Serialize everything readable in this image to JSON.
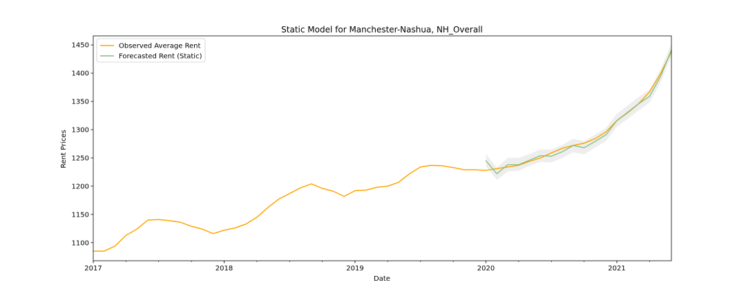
{
  "chart_data": {
    "type": "line",
    "title": "Static Model for Manchester-Nashua, NH_Overall",
    "xlabel": "Date",
    "ylabel": "Rent Prices",
    "xlim": [
      "2017-01",
      "2021-06"
    ],
    "ylim": [
      1068,
      1466
    ],
    "x_ticks": [
      {
        "date": "2017-01",
        "label": "2017"
      },
      {
        "date": "2018-01",
        "label": "2018"
      },
      {
        "date": "2019-01",
        "label": "2019"
      },
      {
        "date": "2020-01",
        "label": "2020"
      },
      {
        "date": "2021-01",
        "label": "2021"
      }
    ],
    "y_ticks": [
      1100,
      1150,
      1200,
      1250,
      1300,
      1350,
      1400,
      1450
    ],
    "grid": false,
    "legend_position": "top-left",
    "series": [
      {
        "name": "Observed Average Rent",
        "color": "#ffa500",
        "x": [
          "2017-01",
          "2017-02",
          "2017-03",
          "2017-04",
          "2017-05",
          "2017-06",
          "2017-07",
          "2017-08",
          "2017-09",
          "2017-10",
          "2017-11",
          "2017-12",
          "2018-01",
          "2018-02",
          "2018-03",
          "2018-04",
          "2018-05",
          "2018-06",
          "2018-07",
          "2018-08",
          "2018-09",
          "2018-10",
          "2018-11",
          "2018-12",
          "2019-01",
          "2019-02",
          "2019-03",
          "2019-04",
          "2019-05",
          "2019-06",
          "2019-07",
          "2019-08",
          "2019-09",
          "2019-10",
          "2019-11",
          "2019-12",
          "2020-01",
          "2020-02",
          "2020-03",
          "2020-04",
          "2020-05",
          "2020-06",
          "2020-07",
          "2020-08",
          "2020-09",
          "2020-10",
          "2020-11",
          "2020-12",
          "2021-01",
          "2021-02",
          "2021-03",
          "2021-04",
          "2021-05",
          "2021-06"
        ],
        "values": [
          1085,
          1085,
          1094,
          1113,
          1124,
          1140,
          1141,
          1139,
          1136,
          1129,
          1124,
          1116,
          1122,
          1126,
          1133,
          1145,
          1162,
          1177,
          1187,
          1197,
          1204,
          1196,
          1191,
          1182,
          1192,
          1193,
          1198,
          1200,
          1207,
          1222,
          1234,
          1237,
          1236,
          1233,
          1229,
          1229,
          1228,
          1231,
          1234,
          1237,
          1244,
          1250,
          1259,
          1267,
          1272,
          1276,
          1284,
          1296,
          1316,
          1330,
          1346,
          1367,
          1399,
          1438
        ]
      },
      {
        "name": "Forecasted Rent (Static)",
        "color": "#7fbf7f",
        "x": [
          "2020-01",
          "2020-02",
          "2020-03",
          "2020-04",
          "2020-05",
          "2020-06",
          "2020-07",
          "2020-08",
          "2020-09",
          "2020-10",
          "2020-11",
          "2020-12",
          "2021-01",
          "2021-02",
          "2021-03",
          "2021-04",
          "2021-05",
          "2021-06"
        ],
        "values": [
          1245,
          1222,
          1238,
          1238,
          1246,
          1254,
          1253,
          1261,
          1272,
          1268,
          1279,
          1291,
          1316,
          1331,
          1346,
          1359,
          1394,
          1441
        ],
        "ci_lower": [
          1235,
          1211,
          1226,
          1227,
          1236,
          1243,
          1242,
          1250,
          1260,
          1256,
          1268,
          1280,
          1305,
          1319,
          1334,
          1348,
          1383,
          1430
        ],
        "ci_upper": [
          1257,
          1233,
          1250,
          1250,
          1257,
          1265,
          1265,
          1273,
          1284,
          1280,
          1291,
          1303,
          1328,
          1343,
          1358,
          1371,
          1406,
          1452
        ]
      }
    ]
  }
}
